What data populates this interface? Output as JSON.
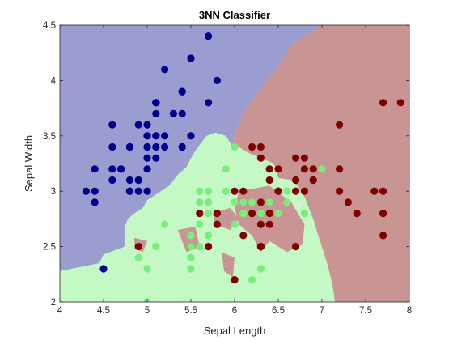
{
  "chart_data": {
    "type": "scatter",
    "title": "3NN Classifier",
    "xlabel": "Sepal Length",
    "ylabel": "Sepal Width",
    "xlim": [
      4,
      8
    ],
    "ylim": [
      2,
      4.5
    ],
    "xticks": [
      "4",
      "4.5",
      "5",
      "5.5",
      "6",
      "6.5",
      "7",
      "7.5",
      "8"
    ],
    "yticks": [
      "2",
      "2.5",
      "3",
      "3.5",
      "4",
      "4.5"
    ],
    "grid": false,
    "legend": "none",
    "regions": {
      "colors": {
        "blue": "#9b9ccf",
        "green": "#c4f8c4",
        "red": "#c99494"
      },
      "description": "decision regions of the 3-NN classifier, traced as polygons in data units",
      "blue": [
        [
          4,
          4.5
        ],
        [
          7.0,
          4.5
        ],
        [
          6.65,
          4.32
        ],
        [
          6.55,
          4.18
        ],
        [
          6.35,
          3.98
        ],
        [
          6.2,
          3.82
        ],
        [
          6.1,
          3.7
        ],
        [
          6.05,
          3.6
        ],
        [
          6.0,
          3.52
        ],
        [
          5.98,
          3.4
        ],
        [
          5.9,
          3.5
        ],
        [
          5.78,
          3.53
        ],
        [
          5.68,
          3.5
        ],
        [
          5.6,
          3.42
        ],
        [
          5.52,
          3.33
        ],
        [
          5.45,
          3.22
        ],
        [
          5.35,
          3.15
        ],
        [
          5.25,
          3.05
        ],
        [
          5.12,
          2.98
        ],
        [
          5.0,
          2.92
        ],
        [
          4.95,
          2.85
        ],
        [
          4.85,
          2.8
        ],
        [
          4.78,
          2.75
        ],
        [
          4.74,
          2.68
        ],
        [
          4.74,
          2.5
        ],
        [
          4.5,
          2.43
        ],
        [
          4.45,
          2.35
        ],
        [
          4,
          2.28
        ]
      ],
      "red": [
        [
          7.0,
          4.5
        ],
        [
          8,
          4.5
        ],
        [
          8,
          2
        ],
        [
          7.15,
          2
        ],
        [
          7.12,
          2.15
        ],
        [
          7.07,
          2.32
        ],
        [
          7.0,
          2.5
        ],
        [
          6.95,
          2.62
        ],
        [
          6.9,
          2.75
        ],
        [
          6.85,
          2.85
        ],
        [
          6.8,
          2.95
        ],
        [
          6.72,
          3.05
        ],
        [
          6.65,
          3.1
        ],
        [
          6.5,
          3.12
        ],
        [
          6.45,
          3.25
        ],
        [
          6.3,
          3.3
        ],
        [
          6.15,
          3.35
        ],
        [
          6.05,
          3.4
        ],
        [
          5.98,
          3.4
        ],
        [
          6.0,
          3.52
        ],
        [
          6.05,
          3.6
        ],
        [
          6.1,
          3.7
        ],
        [
          6.2,
          3.82
        ],
        [
          6.35,
          3.98
        ],
        [
          6.55,
          4.18
        ],
        [
          6.65,
          4.32
        ]
      ],
      "red_islands": [
        [
          [
            6.05,
            3.0
          ],
          [
            6.4,
            3.05
          ],
          [
            6.65,
            2.9
          ],
          [
            6.8,
            2.7
          ],
          [
            6.78,
            2.52
          ],
          [
            6.6,
            2.45
          ],
          [
            6.4,
            2.55
          ],
          [
            6.3,
            2.45
          ],
          [
            6.2,
            2.6
          ],
          [
            6.05,
            2.7
          ],
          [
            6.0,
            2.85
          ]
        ],
        [
          [
            5.75,
            2.8
          ],
          [
            5.95,
            2.85
          ],
          [
            6.05,
            2.75
          ],
          [
            5.95,
            2.65
          ],
          [
            5.78,
            2.7
          ]
        ],
        [
          [
            5.35,
            2.65
          ],
          [
            5.55,
            2.68
          ],
          [
            5.6,
            2.5
          ],
          [
            5.45,
            2.45
          ]
        ],
        [
          [
            5.85,
            2.45
          ],
          [
            6.0,
            2.4
          ],
          [
            5.98,
            2.22
          ],
          [
            5.88,
            2.28
          ]
        ],
        [
          [
            4.85,
            2.58
          ],
          [
            5.0,
            2.55
          ],
          [
            4.95,
            2.45
          ],
          [
            4.86,
            2.48
          ]
        ]
      ]
    },
    "series": [
      {
        "color": "#00008b",
        "points": [
          [
            4.3,
            3.0
          ],
          [
            4.4,
            2.9
          ],
          [
            4.4,
            3.0
          ],
          [
            4.4,
            3.2
          ],
          [
            4.5,
            2.3
          ],
          [
            4.6,
            3.1
          ],
          [
            4.6,
            3.2
          ],
          [
            4.6,
            3.4
          ],
          [
            4.6,
            3.6
          ],
          [
            4.7,
            3.2
          ],
          [
            4.7,
            3.2
          ],
          [
            4.8,
            3.0
          ],
          [
            4.8,
            3.0
          ],
          [
            4.8,
            3.1
          ],
          [
            4.8,
            3.4
          ],
          [
            4.8,
            3.4
          ],
          [
            4.9,
            3.0
          ],
          [
            4.9,
            3.1
          ],
          [
            4.9,
            3.1
          ],
          [
            4.9,
            3.6
          ],
          [
            5.0,
            3.0
          ],
          [
            5.0,
            3.2
          ],
          [
            5.0,
            3.3
          ],
          [
            5.0,
            3.4
          ],
          [
            5.0,
            3.4
          ],
          [
            5.0,
            3.5
          ],
          [
            5.0,
            3.5
          ],
          [
            5.0,
            3.6
          ],
          [
            5.1,
            3.3
          ],
          [
            5.1,
            3.4
          ],
          [
            5.1,
            3.5
          ],
          [
            5.1,
            3.5
          ],
          [
            5.1,
            3.7
          ],
          [
            5.1,
            3.8
          ],
          [
            5.1,
            3.8
          ],
          [
            5.1,
            3.8
          ],
          [
            5.2,
            3.4
          ],
          [
            5.2,
            3.5
          ],
          [
            5.2,
            4.1
          ],
          [
            5.3,
            3.7
          ],
          [
            5.4,
            3.4
          ],
          [
            5.4,
            3.4
          ],
          [
            5.4,
            3.7
          ],
          [
            5.4,
            3.9
          ],
          [
            5.4,
            3.9
          ],
          [
            5.5,
            3.5
          ],
          [
            5.5,
            4.2
          ],
          [
            5.7,
            3.8
          ],
          [
            5.7,
            4.4
          ],
          [
            5.8,
            4.0
          ]
        ]
      },
      {
        "color": "#7cec7c",
        "points": [
          [
            4.9,
            2.4
          ],
          [
            5.0,
            2.0
          ],
          [
            5.0,
            2.3
          ],
          [
            5.1,
            2.5
          ],
          [
            5.2,
            2.7
          ],
          [
            5.5,
            2.3
          ],
          [
            5.5,
            2.4
          ],
          [
            5.5,
            2.4
          ],
          [
            5.5,
            2.5
          ],
          [
            5.5,
            2.6
          ],
          [
            5.6,
            2.5
          ],
          [
            5.6,
            2.7
          ],
          [
            5.6,
            2.9
          ],
          [
            5.6,
            3.0
          ],
          [
            5.7,
            2.6
          ],
          [
            5.7,
            2.8
          ],
          [
            5.7,
            2.9
          ],
          [
            5.7,
            2.9
          ],
          [
            5.7,
            3.0
          ],
          [
            5.8,
            2.7
          ],
          [
            5.8,
            2.7
          ],
          [
            5.9,
            3.0
          ],
          [
            5.9,
            3.2
          ],
          [
            6.0,
            2.2
          ],
          [
            6.0,
            2.7
          ],
          [
            6.0,
            2.9
          ],
          [
            6.0,
            3.4
          ],
          [
            6.1,
            2.8
          ],
          [
            6.1,
            2.8
          ],
          [
            6.1,
            2.9
          ],
          [
            6.1,
            3.0
          ],
          [
            6.2,
            2.2
          ],
          [
            6.2,
            2.9
          ],
          [
            6.3,
            2.3
          ],
          [
            6.3,
            2.5
          ],
          [
            6.3,
            3.3
          ],
          [
            6.4,
            2.9
          ],
          [
            6.4,
            3.2
          ],
          [
            6.5,
            2.8
          ],
          [
            6.6,
            2.9
          ],
          [
            6.6,
            3.0
          ],
          [
            6.7,
            3.0
          ],
          [
            6.7,
            3.1
          ],
          [
            6.7,
            3.1
          ],
          [
            6.8,
            2.8
          ],
          [
            6.9,
            3.1
          ],
          [
            7.0,
            3.2
          ],
          [
            6.3,
            2.8
          ]
        ]
      },
      {
        "color": "#800000",
        "points": [
          [
            4.9,
            2.5
          ],
          [
            5.6,
            2.8
          ],
          [
            5.7,
            2.5
          ],
          [
            5.8,
            2.7
          ],
          [
            5.8,
            2.7
          ],
          [
            5.8,
            2.8
          ],
          [
            6.0,
            2.2
          ],
          [
            6.0,
            3.0
          ],
          [
            6.1,
            2.6
          ],
          [
            6.1,
            3.0
          ],
          [
            6.2,
            2.8
          ],
          [
            6.2,
            3.4
          ],
          [
            6.3,
            2.5
          ],
          [
            6.3,
            2.7
          ],
          [
            6.3,
            2.9
          ],
          [
            6.3,
            3.3
          ],
          [
            6.3,
            3.4
          ],
          [
            6.4,
            2.7
          ],
          [
            6.4,
            3.1
          ],
          [
            6.4,
            3.2
          ],
          [
            6.5,
            3.0
          ],
          [
            6.5,
            3.0
          ],
          [
            6.5,
            3.2
          ],
          [
            6.7,
            2.5
          ],
          [
            6.7,
            3.0
          ],
          [
            6.7,
            3.1
          ],
          [
            6.7,
            3.3
          ],
          [
            6.8,
            3.0
          ],
          [
            6.8,
            3.2
          ],
          [
            6.9,
            3.1
          ],
          [
            6.9,
            3.1
          ],
          [
            6.9,
            3.2
          ],
          [
            7.2,
            3.0
          ],
          [
            7.2,
            3.2
          ],
          [
            7.2,
            3.6
          ],
          [
            7.3,
            2.9
          ],
          [
            7.4,
            2.8
          ],
          [
            7.6,
            3.0
          ],
          [
            7.7,
            2.6
          ],
          [
            7.7,
            2.8
          ],
          [
            7.7,
            3.0
          ],
          [
            7.7,
            3.8
          ],
          [
            7.9,
            3.8
          ],
          [
            6.4,
            2.8
          ],
          [
            6.3,
            2.5
          ],
          [
            6.5,
            3.0
          ],
          [
            6.8,
            3.3
          ]
        ]
      }
    ]
  }
}
